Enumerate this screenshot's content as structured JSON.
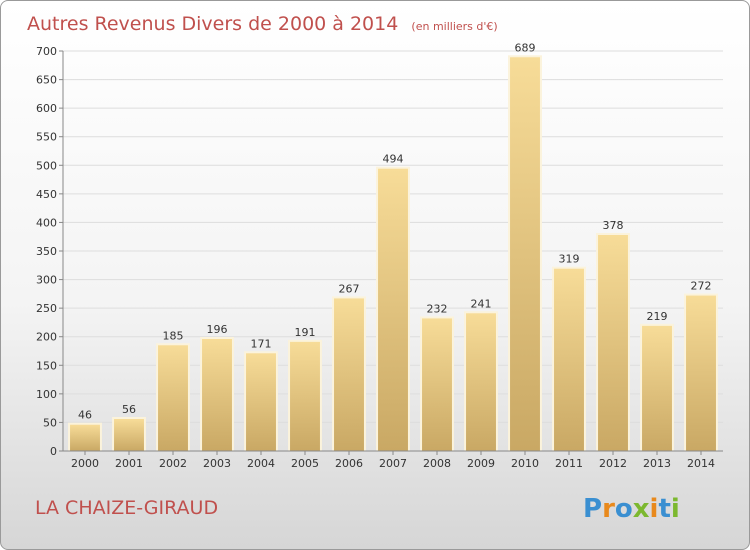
{
  "title": "Autres Revenus Divers de 2000 à 2014",
  "unit_note": "(en milliers d'€)",
  "commune": "LA CHAIZE-GIRAUD",
  "logo": {
    "text": "Proxiti",
    "letters": [
      "P",
      "r",
      "o",
      "x",
      "i",
      "t",
      "i"
    ],
    "colors": [
      "#3a8fd1",
      "#e8891c",
      "#3a8fd1",
      "#7cb82f",
      "#e8891c",
      "#3a8fd1",
      "#7cb82f"
    ]
  },
  "colors": {
    "bar_light": "#f7dc98",
    "bar_dark": "#c9a864",
    "title": "#c0504d",
    "axis": "#888888"
  },
  "chart_data": {
    "type": "bar",
    "title": "Autres Revenus Divers de 2000 à 2014",
    "categories": [
      "2000",
      "2001",
      "2002",
      "2003",
      "2004",
      "2005",
      "2006",
      "2007",
      "2008",
      "2009",
      "2010",
      "2011",
      "2012",
      "2013",
      "2014"
    ],
    "values": [
      46,
      56,
      185,
      196,
      171,
      191,
      267,
      494,
      232,
      241,
      689,
      319,
      378,
      219,
      272
    ],
    "data_labels": [
      "46",
      "56",
      "185",
      "196",
      "171",
      "191",
      "267",
      "494",
      "232",
      "241",
      "689",
      "319",
      "378",
      "219",
      "272"
    ],
    "ylim": [
      0,
      700
    ],
    "yticks": [
      0,
      50,
      100,
      150,
      200,
      250,
      300,
      350,
      400,
      450,
      500,
      550,
      600,
      650,
      700
    ],
    "ytick_labels": [
      "0",
      "50",
      "100",
      "150",
      "200",
      "250",
      "300",
      "350",
      "400",
      "450",
      "500",
      "550",
      "600",
      "650",
      "700"
    ],
    "grid": true,
    "legend": "none"
  }
}
